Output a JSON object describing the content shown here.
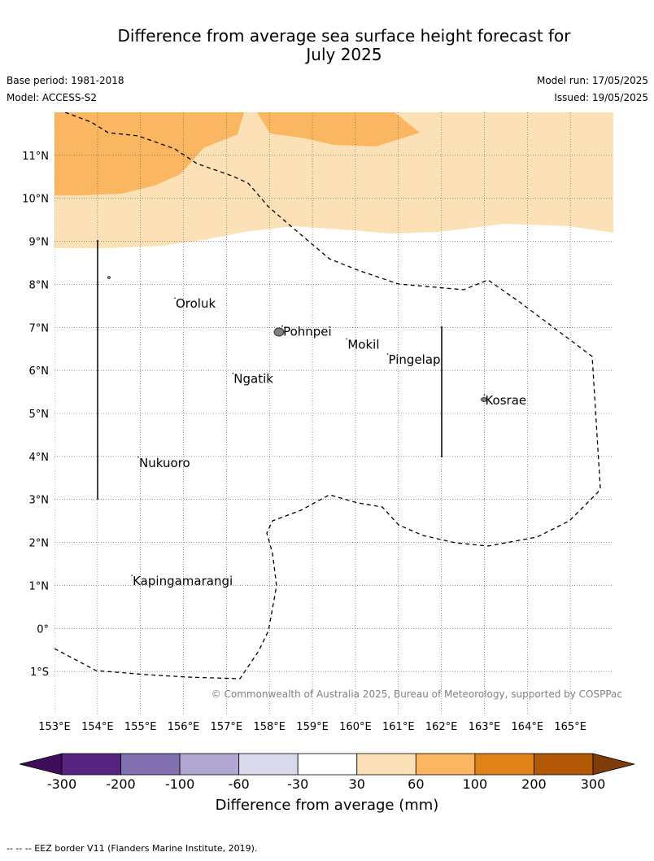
{
  "title_line1": "Difference from average sea surface height forecast for",
  "title_line2": "July 2025",
  "base_period": "Base period: 1981-2018",
  "model": "Model: ACCESS-S2",
  "model_run": "Model run: 17/05/2025",
  "issued": "Issued: 19/05/2025",
  "copyright": "© Commonwealth of Australia 2025, Bureau of Meteorology, supported by COSPPac",
  "footnote": "-- -- -- EEZ border V11 (Flanders Marine Institute, 2019).",
  "map": {
    "lon_range": [
      153,
      166
    ],
    "lat_range": [
      -2,
      12
    ],
    "lat_labels": [
      {
        "lat": 11,
        "label": "11°N"
      },
      {
        "lat": 10,
        "label": "10°N"
      },
      {
        "lat": 9,
        "label": "9°N"
      },
      {
        "lat": 8,
        "label": "8°N"
      },
      {
        "lat": 7,
        "label": "7°N"
      },
      {
        "lat": 6,
        "label": "6°N"
      },
      {
        "lat": 5,
        "label": "5°N"
      },
      {
        "lat": 4,
        "label": "4°N"
      },
      {
        "lat": 3,
        "label": "3°N"
      },
      {
        "lat": 2,
        "label": "2°N"
      },
      {
        "lat": 1,
        "label": "1°N"
      },
      {
        "lat": 0,
        "label": "0°"
      },
      {
        "lat": -1,
        "label": "1°S"
      }
    ],
    "lon_labels": [
      {
        "lon": 153,
        "label": "153°E"
      },
      {
        "lon": 154,
        "label": "154°E"
      },
      {
        "lon": 155,
        "label": "155°E"
      },
      {
        "lon": 156,
        "label": "156°E"
      },
      {
        "lon": 157,
        "label": "157°E"
      },
      {
        "lon": 158,
        "label": "158°E"
      },
      {
        "lon": 159,
        "label": "159°E"
      },
      {
        "lon": 160,
        "label": "160°E"
      },
      {
        "lon": 161,
        "label": "161°E"
      },
      {
        "lon": 162,
        "label": "162°E"
      },
      {
        "lon": 163,
        "label": "163°E"
      },
      {
        "lon": 164,
        "label": "164°E"
      },
      {
        "lon": 165,
        "label": "165°E"
      }
    ],
    "places": [
      {
        "name": "Oroluk",
        "lon": 155.8,
        "lat": 7.55
      },
      {
        "name": "Pohnpei",
        "lon": 158.3,
        "lat": 6.9
      },
      {
        "name": "Mokil",
        "lon": 159.8,
        "lat": 6.6
      },
      {
        "name": "Pingelap",
        "lon": 160.75,
        "lat": 6.25
      },
      {
        "name": "Ngatik",
        "lon": 157.15,
        "lat": 5.8
      },
      {
        "name": "Kosrae",
        "lon": 163.0,
        "lat": 5.3
      },
      {
        "name": "Nukuoro",
        "lon": 154.95,
        "lat": 3.85
      },
      {
        "name": "Kapingamarangi",
        "lon": 154.8,
        "lat": 1.1
      }
    ],
    "colors": {
      "band_30_60": "#fde1b6",
      "band_60_100": "#fbb662",
      "land": "#808080",
      "grid": "#555555",
      "eez": "#000000"
    }
  },
  "colorbar": {
    "ticks": [
      "-300",
      "-200",
      "-100",
      "-60",
      "-30",
      "30",
      "60",
      "100",
      "200",
      "300"
    ],
    "colors": [
      "#3f0d59",
      "#56237f",
      "#8070b0",
      "#b0a8d2",
      "#d9d9ec",
      "#ffffff",
      "#fde1b6",
      "#fbb662",
      "#e08319",
      "#b25907",
      "#7f3b08"
    ],
    "label": "Difference from average (mm)"
  }
}
